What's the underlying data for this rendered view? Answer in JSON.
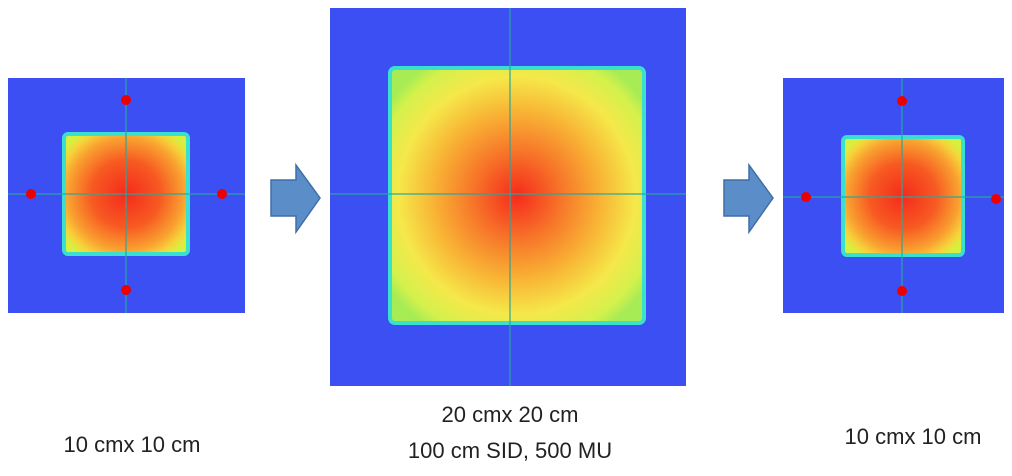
{
  "panels": [
    {
      "caption": [
        "10 cmx 10 cm"
      ]
    },
    {
      "caption": [
        "20 cmx 20 cm",
        "100 cm SID, 500 MU"
      ]
    },
    {
      "caption": [
        "10 cmx 10 cm"
      ]
    }
  ]
}
